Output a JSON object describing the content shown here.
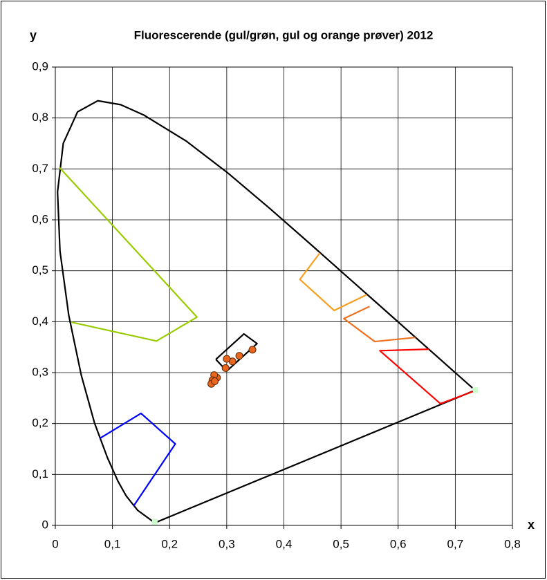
{
  "chart_data": {
    "type": "scatter",
    "title": "Fluorescerende (gul/grøn, gul og orange prøver) 2012",
    "x_label": "x",
    "y_label": "y",
    "xlim": [
      0,
      0.8
    ],
    "ylim": [
      0,
      0.9
    ],
    "xticks": [
      0,
      {
        "value": 0.1,
        "label": "0,1"
      },
      {
        "value": 0.2,
        "label": "0,2"
      },
      {
        "value": 0.3,
        "label": "0,3"
      },
      {
        "value": 0.4,
        "label": "0,4"
      },
      {
        "value": 0.5,
        "label": "0,5"
      },
      {
        "value": 0.6,
        "label": "0,6"
      },
      {
        "value": 0.7,
        "label": "0,7"
      },
      {
        "value": 0.8,
        "label": "0,8"
      }
    ],
    "yticks": [
      0,
      {
        "value": 0.1,
        "label": "0,1"
      },
      {
        "value": 0.2,
        "label": "0,2"
      },
      {
        "value": 0.3,
        "label": "0,3"
      },
      {
        "value": 0.4,
        "label": "0,4"
      },
      {
        "value": 0.5,
        "label": "0,5"
      },
      {
        "value": 0.6,
        "label": "0,6"
      },
      {
        "value": 0.7,
        "label": "0,7"
      },
      {
        "value": 0.8,
        "label": "0,8"
      },
      {
        "value": 0.9,
        "label": "0,9"
      }
    ],
    "grid": true,
    "series": [
      {
        "mode": "lines",
        "color": "#000000",
        "x": [
          0.1741,
          0.144,
          0.1241,
          0.1096,
          0.0913,
          0.0687,
          0.0454,
          0.0235,
          0.0082,
          0.0039,
          0.0139,
          0.0389,
          0.0743,
          0.1142,
          0.1547,
          0.2296,
          0.3016,
          0.3731,
          0.4441,
          0.5125,
          0.5752,
          0.627,
          0.6915,
          0.719,
          0.7347,
          0.1741
        ],
        "y": [
          0.005,
          0.0297,
          0.0578,
          0.0868,
          0.1327,
          0.2007,
          0.295,
          0.4127,
          0.5384,
          0.6548,
          0.7502,
          0.812,
          0.8338,
          0.8262,
          0.8059,
          0.7543,
          0.6923,
          0.6245,
          0.5547,
          0.4866,
          0.4242,
          0.3725,
          0.3083,
          0.2809,
          0.2653,
          0.005
        ]
      },
      {
        "mode": "markers",
        "marker": "square",
        "color": "#ccffcc",
        "x": [
          0.7347,
          0.1741
        ],
        "y": [
          0.2653,
          0.007
        ]
      },
      {
        "mode": "lines",
        "color": "#99cc00",
        "x": [
          0.007,
          0.248,
          0.177,
          0.028
        ],
        "y": [
          0.703,
          0.409,
          0.362,
          0.399
        ]
      },
      {
        "mode": "lines",
        "color": "#0000ff",
        "x": [
          0.078,
          0.15,
          0.21,
          0.137
        ],
        "y": [
          0.171,
          0.22,
          0.16,
          0.038
        ]
      },
      {
        "mode": "lines",
        "color": "#f5a020",
        "x": [
          0.463,
          0.428,
          0.488,
          0.545
        ],
        "y": [
          0.535,
          0.483,
          0.422,
          0.453
        ]
      },
      {
        "mode": "lines",
        "color": "#f07020",
        "x": [
          0.55,
          0.505,
          0.559,
          0.63
        ],
        "y": [
          0.43,
          0.406,
          0.361,
          0.369
        ]
      },
      {
        "mode": "lines",
        "color": "#ff0000",
        "x": [
          0.654,
          0.568,
          0.674,
          0.731
        ],
        "y": [
          0.346,
          0.343,
          0.239,
          0.263
        ]
      },
      {
        "mode": "lines",
        "color": "#000000",
        "x": [
          0.281,
          0.33,
          0.353,
          0.3,
          0.281
        ],
        "y": [
          0.326,
          0.376,
          0.357,
          0.303,
          0.326
        ]
      },
      {
        "mode": "markers",
        "marker": "circle",
        "color": "#e8661f",
        "x": [
          0.345,
          0.322,
          0.31,
          0.3,
          0.298,
          0.283,
          0.278,
          0.275,
          0.273,
          0.279
        ],
        "y": [
          0.345,
          0.333,
          0.322,
          0.327,
          0.309,
          0.29,
          0.295,
          0.285,
          0.278,
          0.283
        ]
      }
    ]
  }
}
